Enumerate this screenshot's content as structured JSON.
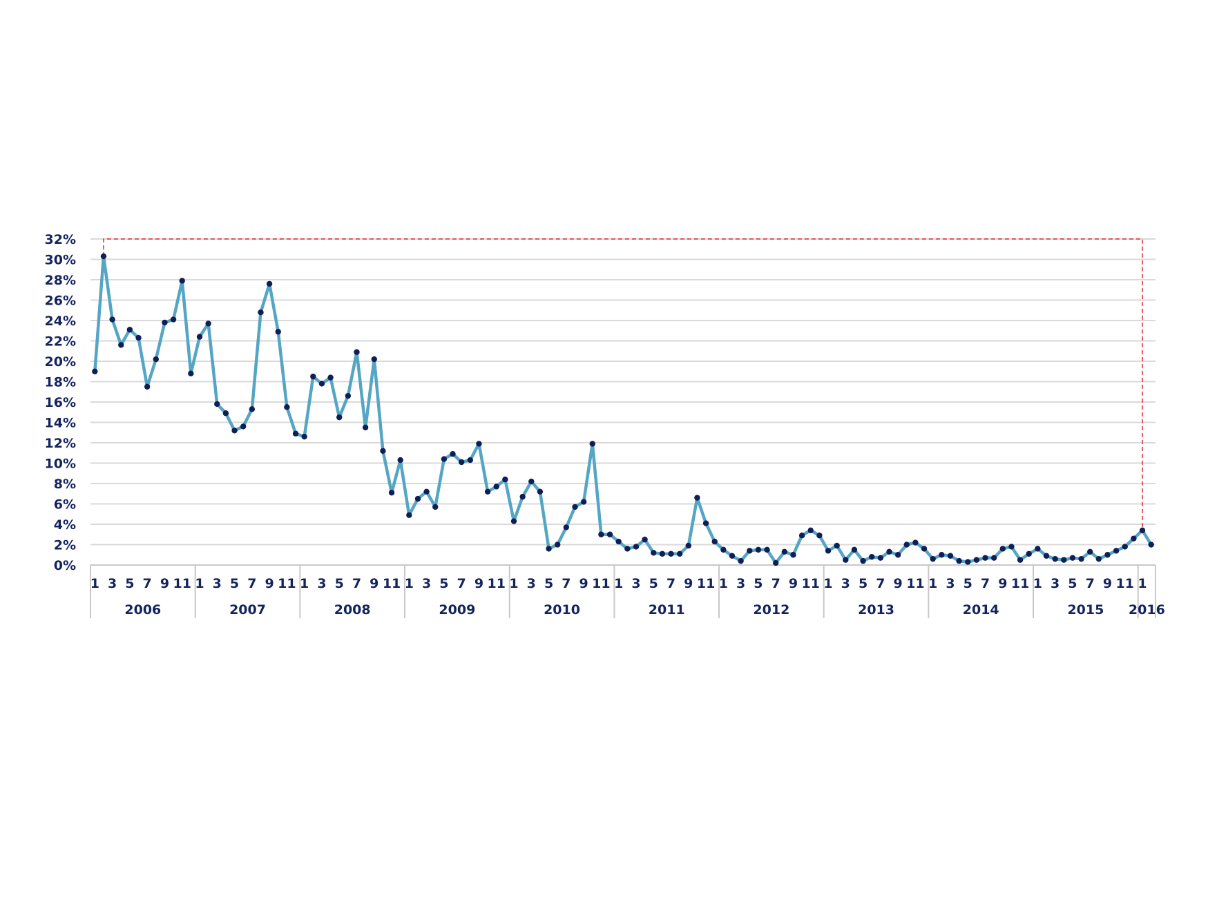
{
  "chart_data": {
    "type": "line",
    "title": "",
    "xlabel": "",
    "ylabel": "",
    "ylim": [
      0,
      32
    ],
    "y_tick_step": 2,
    "y_tick_format": "percent",
    "grid": "horizontal",
    "legend": "none",
    "colors": {
      "line": "#55a5c4",
      "marker": "#0f1f55",
      "axis_text": "#13235c",
      "grid": "#d9d9d9",
      "highlight": "#e8283a"
    },
    "years": [
      "2006",
      "2007",
      "2008",
      "2009",
      "2010",
      "2011",
      "2012",
      "2013",
      "2014",
      "2015",
      "2016"
    ],
    "month_tick_labels": [
      "1",
      "3",
      "5",
      "7",
      "9",
      "11"
    ],
    "last_year_month_tick_labels": [
      "1"
    ],
    "series": [
      {
        "values": [
          19.0,
          30.3,
          24.1,
          21.6,
          23.1,
          22.3,
          17.5,
          20.2,
          23.8,
          24.1,
          27.9,
          18.8,
          22.4,
          23.7,
          15.8,
          14.9,
          13.2,
          13.6,
          15.3,
          24.8,
          27.6,
          22.9,
          15.5,
          12.9,
          12.6,
          18.5,
          17.8,
          18.4,
          14.5,
          16.6,
          20.9,
          13.5,
          20.2,
          11.2,
          7.1,
          10.3,
          4.9,
          6.5,
          7.2,
          5.7,
          10.4,
          10.9,
          10.1,
          10.3,
          11.9,
          7.2,
          7.7,
          8.4,
          4.3,
          6.7,
          8.2,
          7.2,
          1.6,
          2.0,
          3.7,
          5.7,
          6.2,
          11.9,
          3.0,
          3.0,
          2.3,
          1.6,
          1.8,
          2.5,
          1.2,
          1.1,
          1.1,
          1.1,
          1.9,
          6.6,
          4.1,
          2.3,
          1.5,
          0.9,
          0.4,
          1.4,
          1.5,
          1.5,
          0.2,
          1.3,
          1.0,
          2.9,
          3.4,
          2.9,
          1.4,
          1.9,
          0.5,
          1.5,
          0.4,
          0.8,
          0.7,
          1.3,
          1.0,
          2.0,
          2.2,
          1.6,
          0.6,
          1.0,
          0.9,
          0.4,
          0.3,
          0.5,
          0.7,
          0.7,
          1.6,
          1.8,
          0.5,
          1.1,
          1.6,
          0.9,
          0.6,
          0.5,
          0.7,
          0.6,
          1.3,
          0.6,
          1.0,
          1.4,
          1.8,
          2.6,
          3.4,
          2.0
        ]
      }
    ],
    "highlight_box": {
      "style": "dashed",
      "from": "2006-02",
      "to": "2016-01",
      "top_value": 32
    }
  }
}
